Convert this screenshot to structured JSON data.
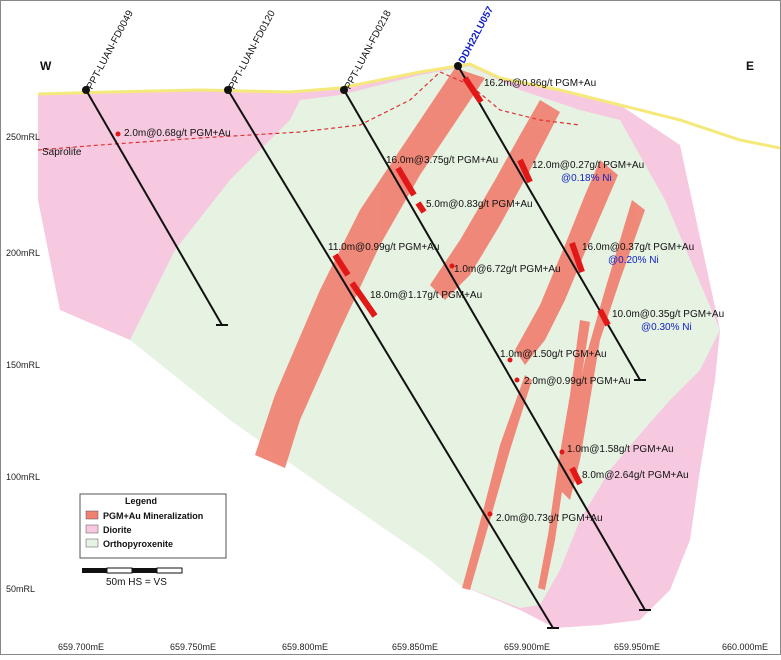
{
  "compass": {
    "west": "W",
    "east": "E"
  },
  "layers": {
    "saprolite": "Saprolite"
  },
  "drillholes": [
    {
      "name": "PPT-LUAN-FD0049"
    },
    {
      "name": "PPT-LUAN-FD0120"
    },
    {
      "name": "PPT-LUAN-FD0218"
    },
    {
      "name": "DDH22LU057"
    }
  ],
  "intercepts": [
    "2.0m@0.68g/t PGM+Au",
    "16.2m@0.86g/t PGM+Au",
    "16.0m@3.75g/t PGM+Au",
    "12.0m@0.27g/t PGM+Au",
    "5.0m@0.83g/t PGM+Au",
    "11.0m@0.99g/t PGM+Au",
    "1.0m@6.72g/t PGM+Au",
    "16.0m@0.37g/t PGM+Au",
    "18.0m@1.17g/t PGM+Au",
    "10.0m@0.35g/t PGM+Au",
    "1.0m@1.50g/t PGM+Au",
    "2.0m@0.99g/t PGM+Au",
    "1.0m@1.58g/t PGM+Au",
    "8.0m@2.64g/t PGM+Au",
    "2.0m@0.73g/t PGM+Au"
  ],
  "nickel": [
    "@0.18% Ni",
    "@0.20% Ni",
    "@0.30% Ni"
  ],
  "y_axis": [
    "250mRL",
    "200mRL",
    "150mRL",
    "100mRL",
    "50mRL"
  ],
  "x_axis": [
    "659.700mE",
    "659.750mE",
    "659.800mE",
    "659.850mE",
    "659.900mE",
    "659.950mE",
    "660.000mE"
  ],
  "legend": {
    "title": "Legend",
    "items": [
      {
        "label": "PGM+Au Mineralization",
        "color": "#f08070"
      },
      {
        "label": "Diorite",
        "color": "#f6c9e0"
      },
      {
        "label": "Orthopyroxenite",
        "color": "#e6f2e2"
      }
    ]
  },
  "scale": {
    "label": "50m  HS = VS"
  }
}
